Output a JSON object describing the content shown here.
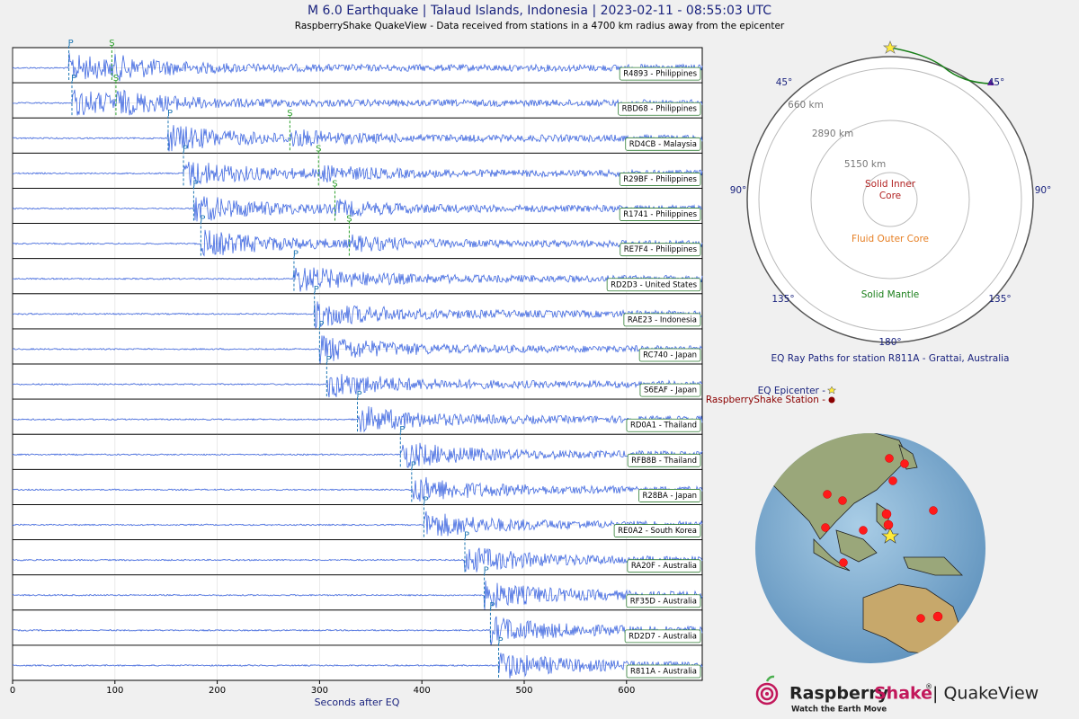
{
  "chart_data": {
    "type": "seismogram",
    "title": "M 6.0 Earthquake | Talaud Islands, Indonesia | 2023-02-11 - 08:55:03 UTC",
    "subtitle": "RaspberryShake QuakeView - Data received from stations in a 4700 km radius away from the epicenter",
    "x_label": "Seconds after EQ",
    "xlim": [
      0,
      674
    ],
    "xticks": [
      0,
      100,
      200,
      300,
      400,
      500,
      600
    ],
    "grid": true,
    "color": "#4169e1",
    "p_label": "P",
    "s_label": "S",
    "p_color": "#1f77b4",
    "s_color": "#2ca02c",
    "series": [
      {
        "name": "R4893 - Philippines",
        "p_arrival": 55,
        "s_arrival": 97
      },
      {
        "name": "RBD68 - Philippines",
        "p_arrival": 58,
        "s_arrival": 101
      },
      {
        "name": "RD4CB - Malaysia",
        "p_arrival": 152,
        "s_arrival": 271
      },
      {
        "name": "R29BF - Philippines",
        "p_arrival": 167,
        "s_arrival": 299
      },
      {
        "name": "R1741 - Philippines",
        "p_arrival": 177,
        "s_arrival": 315
      },
      {
        "name": "RE7F4 - Philippines",
        "p_arrival": 184,
        "s_arrival": 329
      },
      {
        "name": "RD2D3 - United States",
        "p_arrival": 275
      },
      {
        "name": "RAE23 - Indonesia",
        "p_arrival": 295
      },
      {
        "name": "RC740 - Japan",
        "p_arrival": 300
      },
      {
        "name": "S6EAF - Japan",
        "p_arrival": 307
      },
      {
        "name": "RD0A1 - Thailand",
        "p_arrival": 337
      },
      {
        "name": "RFB8B - Thailand",
        "p_arrival": 379
      },
      {
        "name": "R28BA - Japan",
        "p_arrival": 390
      },
      {
        "name": "RE0A2 - South Korea",
        "p_arrival": 402
      },
      {
        "name": "RA20F - Australia",
        "p_arrival": 442
      },
      {
        "name": "RF35D - Australia",
        "p_arrival": 461
      },
      {
        "name": "RD2D7 - Australia",
        "p_arrival": 467
      },
      {
        "name": "R811A - Australia",
        "p_arrival": 475
      }
    ]
  },
  "ray_diagram": {
    "degree_labels": [
      "45°",
      "45°",
      "90°",
      "90°",
      "135°",
      "135°",
      "180°"
    ],
    "depth_labels": [
      "660 km",
      "2890 km",
      "5150 km"
    ],
    "inner_core": "Solid Inner Core",
    "outer_core": "Fluid Outer Core",
    "mantle": "Solid Mantle",
    "caption": "EQ Ray Paths for station R811A - Grattai, Australia"
  },
  "globe": {
    "epicenter_legend": "EQ Epicenter -",
    "station_legend": "RaspberryShake Station -"
  },
  "logo": {
    "brand": "Raspberry",
    "brand2": "Shake",
    "reg": "®",
    "product": "| QuakeView",
    "tagline": "Watch the Earth Move"
  }
}
